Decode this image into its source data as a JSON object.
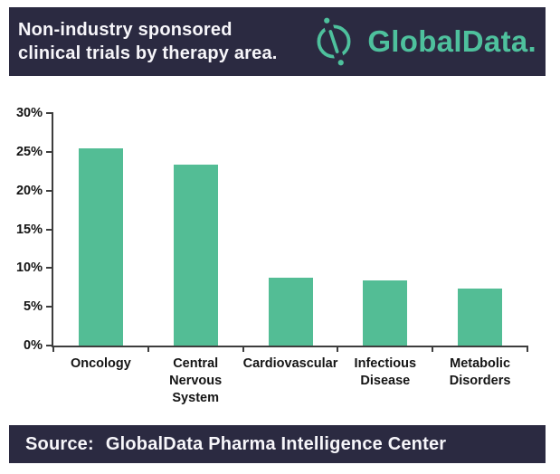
{
  "header": {
    "title_line1": "Non-industry sponsored",
    "title_line2": "clinical trials by therapy area.",
    "brand": "GlobalData."
  },
  "theme": {
    "banner_bg": "#2b2a41",
    "banner_text": "#f7f6fa",
    "brand_teal": "#4ec19d",
    "bar_teal": "#53bd95",
    "axis_color": "#3d3d3d"
  },
  "chart_data": {
    "type": "bar",
    "title": "Non-industry sponsored clinical trials by therapy area.",
    "categories": [
      "Oncology",
      "Central Nervous System",
      "Cardiovascular",
      "Infectious Disease",
      "Metabolic Disorders"
    ],
    "category_lines": [
      [
        "Oncology"
      ],
      [
        "Central",
        "Nervous",
        "System"
      ],
      [
        "Cardiovascular"
      ],
      [
        "Infectious",
        "Disease"
      ],
      [
        "Metabolic",
        "Disorders"
      ]
    ],
    "values": [
      25.5,
      23.3,
      8.8,
      8.4,
      7.3
    ],
    "unit": "%",
    "xlabel": "",
    "ylabel": "",
    "ylim": [
      0,
      30
    ],
    "yticks": [
      {
        "label": "0%",
        "value": 0
      },
      {
        "label": "5%",
        "value": 5
      },
      {
        "label": "10%",
        "value": 10
      },
      {
        "label": "15%",
        "value": 15
      },
      {
        "label": "20%",
        "value": 20
      },
      {
        "label": "25%",
        "value": 25
      },
      {
        "label": "30%",
        "value": 30
      }
    ],
    "grid": false,
    "legend": false
  },
  "footer": {
    "label": "Source:",
    "text": "GlobalData Pharma Intelligence Center"
  }
}
